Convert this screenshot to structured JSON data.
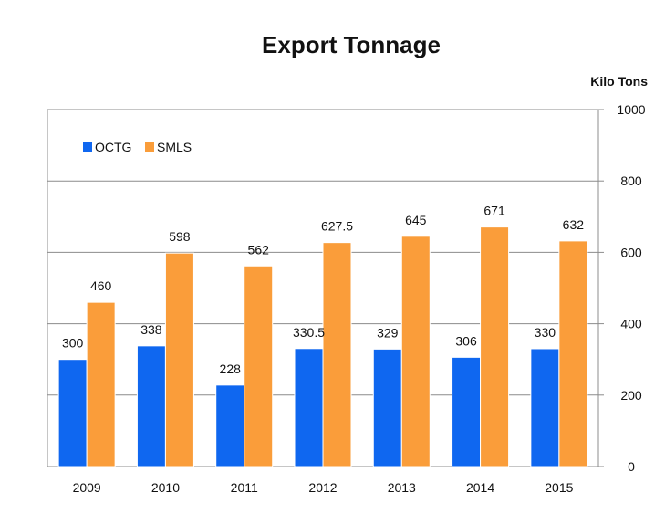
{
  "chart_data": {
    "type": "bar",
    "title": "Export  Tonnage",
    "unit_label": "Kilo Tons",
    "categories": [
      "2009",
      "2010",
      "2011",
      "2012",
      "2013",
      "2014",
      "2015"
    ],
    "series": [
      {
        "name": "OCTG",
        "color": "#0f67f0",
        "values": [
          300,
          338,
          228,
          330.5,
          329,
          306,
          330
        ]
      },
      {
        "name": "SMLS",
        "color": "#fa9d3a",
        "values": [
          460,
          598,
          562,
          627.5,
          645,
          671,
          632
        ]
      }
    ],
    "ylim": [
      0,
      1000
    ],
    "yticks": [
      0,
      200,
      400,
      600,
      800,
      1000
    ],
    "y_axis_side": "right",
    "grid": true,
    "legend_position": "top-left"
  }
}
